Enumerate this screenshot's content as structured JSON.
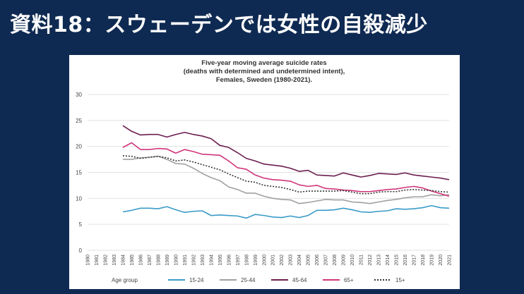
{
  "slide": {
    "title": "資料18：スウェーデンでは女性の自殺減少"
  },
  "chart_data": {
    "type": "line",
    "title": [
      "Five-year moving average suicide rates",
      "(deaths with determined and undetermined intent),",
      "Females, Sweden (1980-2021)."
    ],
    "ylim": [
      0,
      30
    ],
    "yticks": [
      0,
      5,
      10,
      15,
      20,
      25,
      30
    ],
    "x": [
      1980,
      1981,
      1982,
      1983,
      1984,
      1985,
      1986,
      1987,
      1988,
      1989,
      1990,
      1991,
      1992,
      1993,
      1994,
      1995,
      1996,
      1997,
      1998,
      1999,
      2000,
      2001,
      2002,
      2003,
      2004,
      2005,
      2006,
      2007,
      2008,
      2009,
      2010,
      2011,
      2012,
      2013,
      2014,
      2015,
      2016,
      2017,
      2018,
      2019,
      2020,
      2021
    ],
    "grid": "horizontal",
    "legend": {
      "title": "Age group",
      "position": "bottom"
    },
    "series": [
      {
        "name": "15-24",
        "color": "#3a9bc8",
        "dash": "",
        "values": [
          null,
          null,
          null,
          null,
          7.4,
          7.7,
          8.1,
          8.1,
          8.0,
          8.4,
          7.8,
          7.3,
          7.5,
          7.6,
          6.7,
          6.8,
          6.7,
          6.6,
          6.2,
          6.9,
          6.7,
          6.4,
          6.3,
          6.6,
          6.3,
          6.7,
          7.7,
          7.7,
          7.8,
          8.1,
          7.8,
          7.4,
          7.3,
          7.5,
          7.6,
          8.0,
          7.9,
          8.0,
          8.2,
          8.6,
          8.2,
          8.1
        ]
      },
      {
        "name": "25-44",
        "color": "#a0a0a0",
        "dash": "",
        "values": [
          null,
          null,
          null,
          null,
          17.5,
          17.5,
          17.8,
          17.9,
          18.1,
          17.5,
          16.7,
          16.6,
          15.8,
          14.8,
          14.0,
          13.4,
          12.2,
          11.7,
          11.0,
          11.0,
          10.4,
          10.0,
          9.8,
          9.7,
          9.0,
          9.2,
          9.5,
          9.8,
          9.7,
          9.7,
          9.3,
          9.2,
          9.0,
          9.3,
          9.6,
          9.8,
          10.1,
          10.3,
          10.3,
          10.7,
          10.5,
          10.7
        ]
      },
      {
        "name": "45-64",
        "color": "#6b1f4f",
        "dash": "",
        "values": [
          null,
          null,
          null,
          null,
          24.0,
          22.9,
          22.2,
          22.3,
          22.3,
          21.8,
          22.3,
          22.7,
          22.3,
          22.0,
          21.5,
          20.2,
          19.8,
          18.8,
          17.7,
          17.2,
          16.6,
          16.4,
          16.2,
          15.8,
          15.2,
          15.4,
          14.5,
          14.4,
          14.3,
          14.9,
          14.5,
          14.1,
          14.4,
          14.8,
          14.7,
          14.6,
          14.9,
          14.5,
          14.3,
          14.1,
          13.9,
          13.6
        ]
      },
      {
        "name": "65+",
        "color": "#d0357a",
        "dash": "",
        "values": [
          null,
          null,
          null,
          null,
          19.8,
          20.7,
          19.4,
          19.4,
          19.6,
          19.5,
          18.7,
          19.4,
          19.0,
          18.5,
          18.4,
          18.3,
          17.2,
          15.9,
          15.6,
          14.5,
          13.9,
          13.6,
          13.5,
          13.3,
          12.6,
          12.3,
          12.5,
          11.9,
          11.8,
          11.6,
          11.5,
          11.3,
          11.3,
          11.5,
          11.7,
          11.8,
          12.1,
          12.3,
          12.0,
          11.4,
          10.9,
          10.4
        ]
      },
      {
        "name": "15+",
        "color": "#333333",
        "dash": "2,2",
        "values": [
          null,
          null,
          null,
          null,
          18.2,
          18.1,
          17.7,
          17.9,
          18.1,
          17.8,
          17.2,
          17.4,
          17.0,
          16.5,
          16.0,
          15.5,
          14.7,
          14.0,
          13.3,
          13.1,
          12.5,
          12.3,
          12.1,
          11.7,
          11.2,
          11.4,
          11.4,
          11.4,
          11.4,
          11.5,
          11.2,
          10.9,
          10.9,
          11.2,
          11.3,
          11.3,
          11.6,
          11.7,
          11.6,
          11.5,
          11.3,
          11.2
        ]
      }
    ]
  }
}
